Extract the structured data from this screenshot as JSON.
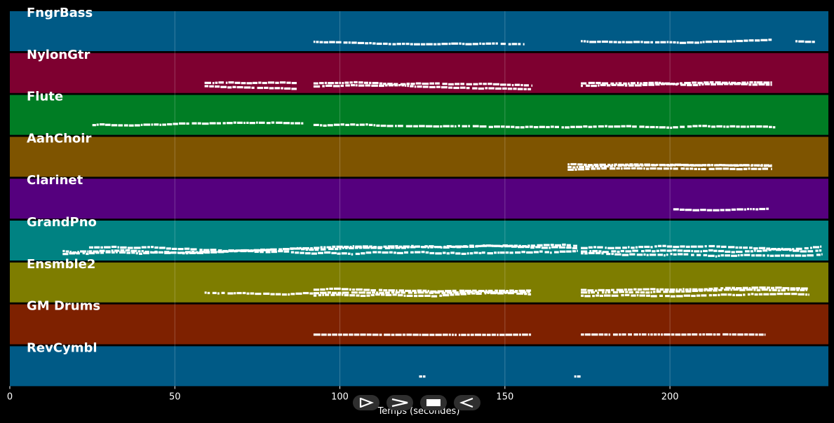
{
  "chart_data": {
    "type": "piano-roll",
    "xlabel": "Temps (secondes)",
    "xlim": [
      0,
      248
    ],
    "xticks": [
      0,
      50,
      100,
      150,
      200
    ],
    "grid": true,
    "lanes": [
      {
        "name": "FngrBass",
        "color": "#005a86",
        "segments": [
          [
            92,
            156,
            1
          ],
          [
            173,
            231,
            1
          ],
          [
            238,
            244,
            1
          ]
        ],
        "pitch_spread": 0.5
      },
      {
        "name": "NylonGtr",
        "color": "#7e0030",
        "segments": [
          [
            59,
            87,
            2
          ],
          [
            92,
            158,
            2
          ],
          [
            173,
            231,
            2
          ]
        ],
        "pitch_spread": 0.6
      },
      {
        "name": "Flute",
        "color": "#007d24",
        "segments": [
          [
            25,
            89,
            1
          ],
          [
            92,
            232,
            1
          ]
        ],
        "pitch_spread": 0.6
      },
      {
        "name": "AahChoir",
        "color": "#7e5400",
        "segments": [
          [
            169,
            231,
            3
          ]
        ],
        "pitch_spread": 0.4
      },
      {
        "name": "Clarinet",
        "color": "#55007e",
        "segments": [
          [
            201,
            230,
            1
          ]
        ],
        "pitch_spread": 0.6
      },
      {
        "name": "GrandPno",
        "color": "#008282",
        "segments": [
          [
            16,
            24,
            2
          ],
          [
            24,
            172,
            3
          ],
          [
            173,
            246,
            3
          ]
        ],
        "pitch_spread": 0.9
      },
      {
        "name": "Ensmble2",
        "color": "#7e7d00",
        "segments": [
          [
            59,
            92,
            1
          ],
          [
            92,
            158,
            3
          ],
          [
            173,
            242,
            3
          ]
        ],
        "pitch_spread": 0.7
      },
      {
        "name": "GM Drums",
        "color": "#7e2100",
        "segments": [
          [
            92,
            158,
            1
          ],
          [
            173,
            229,
            1
          ]
        ],
        "pitch_spread": 0.1
      },
      {
        "name": "RevCymbl",
        "color": "#005a86",
        "segments": [
          [
            124,
            126,
            1
          ],
          [
            171,
            173,
            1
          ]
        ],
        "pitch_spread": 0.0
      }
    ]
  },
  "transport": {
    "play_icon": "play-icon",
    "forward_icon": "fast-forward-icon",
    "stop_icon": "stop-icon",
    "rewind_icon": "rewind-icon"
  }
}
